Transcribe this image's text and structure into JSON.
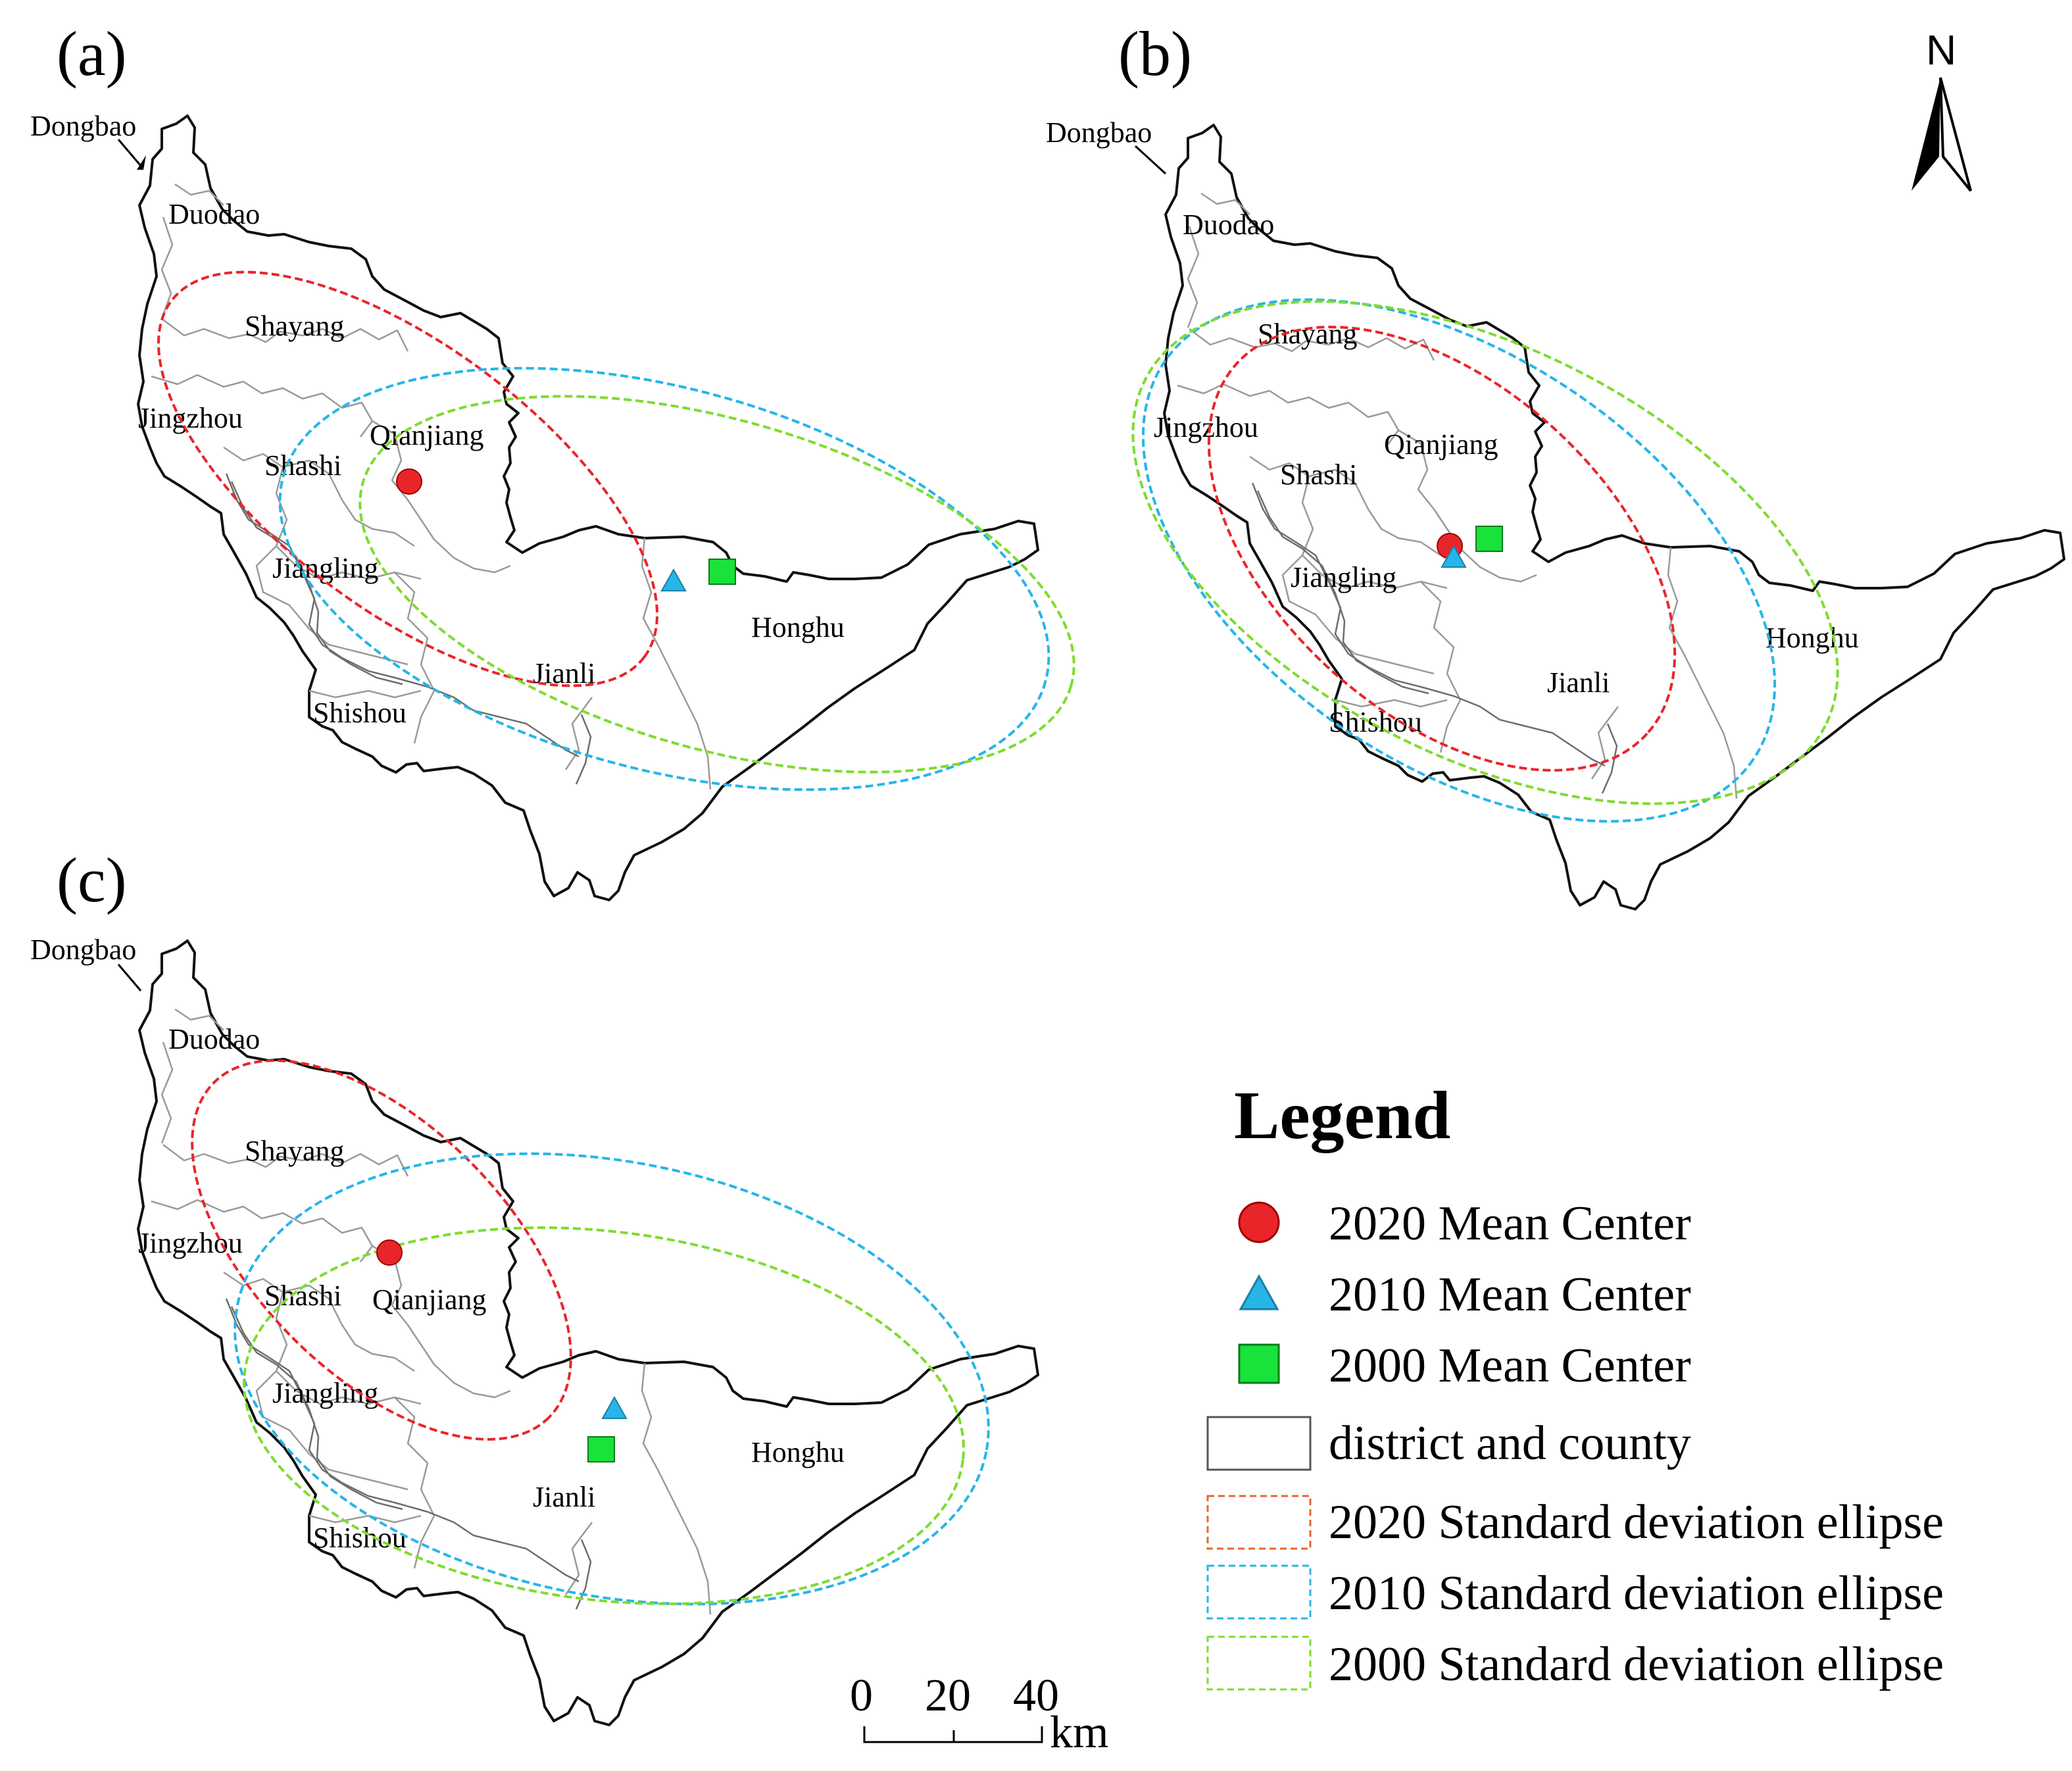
{
  "panels": [
    {
      "label": "(a)",
      "places": {
        "Dongbao": "Dongbao",
        "Duodao": "Duodao",
        "Shayang": "Shayang",
        "Jingzhou": "Jingzhou",
        "Qianjiang": "Qianjiang",
        "Shashi": "Shashi",
        "Jiangling": "Jiangling",
        "Jianli": "Jianli",
        "Shishou": "Shishou",
        "Honghu": "Honghu"
      }
    },
    {
      "label": "(b)",
      "places": {
        "Dongbao": "Dongbao",
        "Duodao": "Duodao",
        "Shayang": "Shayang",
        "Jingzhou": "Jingzhou",
        "Qianjiang": "Qianjiang",
        "Shashi": "Shashi",
        "Jiangling": "Jiangling",
        "Jianli": "Jianli",
        "Shishou": "Shishou",
        "Honghu": "Honghu"
      }
    },
    {
      "label": "(c)",
      "places": {
        "Dongbao": "Dongbao",
        "Duodao": "Duodao",
        "Shayang": "Shayang",
        "Jingzhou": "Jingzhou",
        "Qianjiang": "Qianjiang",
        "Shashi": "Shashi",
        "Jiangling": "Jiangling",
        "Jianli": "Jianli",
        "Shishou": "Shishou",
        "Honghu": "Honghu"
      }
    }
  ],
  "north_arrow": {
    "label": "N"
  },
  "legend": {
    "title": "Legend",
    "items": {
      "mc2020": "2020 Mean Center",
      "mc2010": "2010 Mean Center",
      "mc2000": "2000 Mean Center",
      "boundary": "district and county",
      "sde2020": "2020 Standard deviation ellipse",
      "sde2010": "2010 Standard deviation ellipse",
      "sde2000": "2000 Standard deviation ellipse"
    }
  },
  "scale_bar": {
    "ticks": [
      "0",
      "20",
      "40"
    ],
    "unit": "km"
  },
  "colors": {
    "y2020": "#e8262a",
    "y2010": "#27b5e8",
    "y2000": "#7ddc2f",
    "mc2000_fill": "#19e23a",
    "boundary_outer": "#111111",
    "boundary_inner": "#9a9a9a"
  }
}
